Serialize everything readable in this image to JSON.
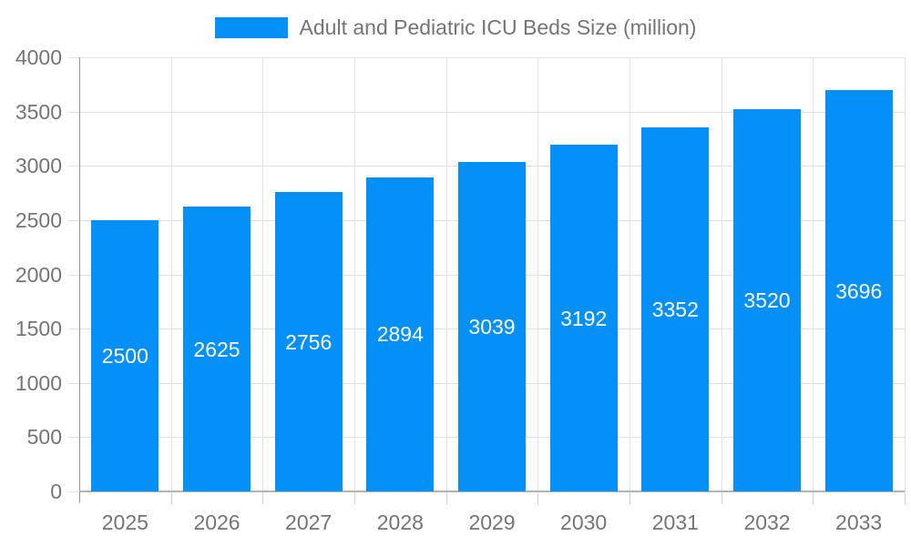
{
  "legend": {
    "label": "Adult and Pediatric ICU Beds Size (million)",
    "swatch_color": "#0590f8"
  },
  "chart_data": {
    "type": "bar",
    "title": "Adult and Pediatric ICU Beds Size (million)",
    "categories": [
      "2025",
      "2026",
      "2027",
      "2028",
      "2029",
      "2030",
      "2031",
      "2032",
      "2033"
    ],
    "values": [
      2500,
      2625,
      2756,
      2894,
      3039,
      3192,
      3352,
      3520,
      3696
    ],
    "y_ticks": [
      0,
      500,
      1000,
      1500,
      2000,
      2500,
      3000,
      3500,
      4000
    ],
    "ylim": [
      0,
      4000
    ],
    "xlabel": "",
    "ylabel": "",
    "grid": true,
    "legend_position": "top",
    "bar_color": "#0590f8",
    "bar_label_color": "#ffffff",
    "axis_text_color": "#757575",
    "gridline_color": "#e0e0e0"
  }
}
